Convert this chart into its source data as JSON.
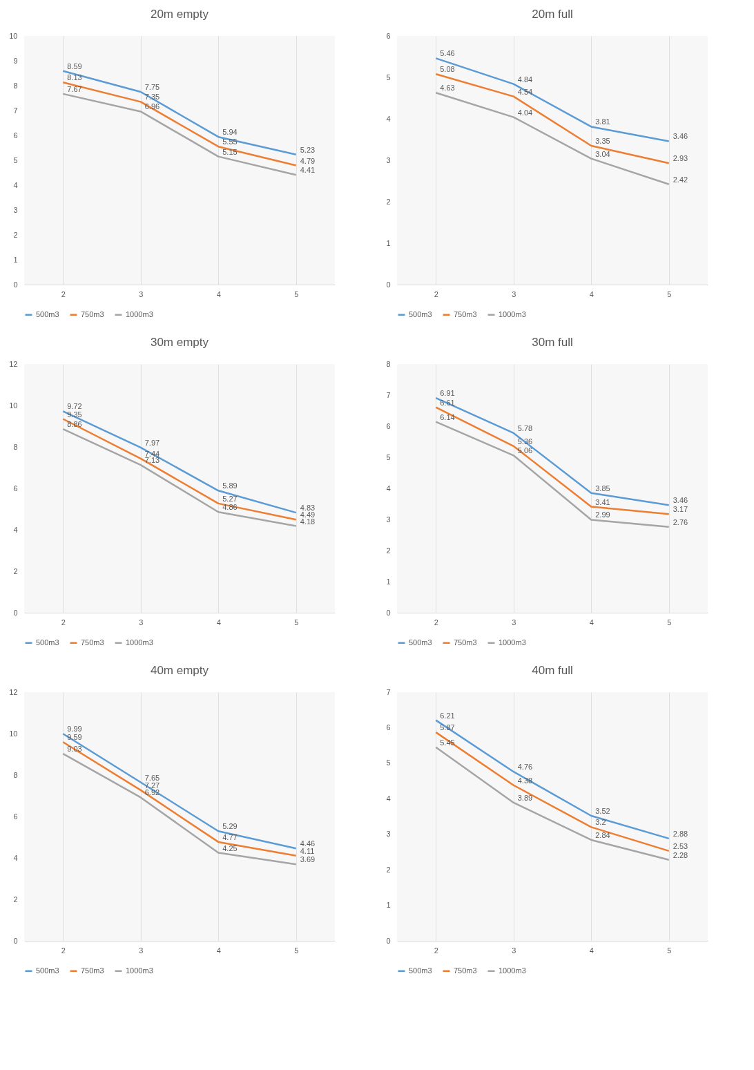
{
  "chart_data": [
    {
      "type": "line",
      "title": "20m empty",
      "categories": [
        "2",
        "3",
        "4",
        "5"
      ],
      "ylim": [
        0,
        10
      ],
      "yticks": [
        0,
        1,
        2,
        3,
        4,
        5,
        6,
        7,
        8,
        9,
        10
      ],
      "grid": "x",
      "legend": "bottom",
      "data_labels": true,
      "marker": "none",
      "line_style": "solid",
      "series": [
        {
          "name": "500m3",
          "color": "#5b9bd5",
          "values": [
            8.59,
            7.75,
            5.94,
            5.23
          ]
        },
        {
          "name": "750m3",
          "color": "#ed7d31",
          "values": [
            8.13,
            7.35,
            5.55,
            4.79
          ]
        },
        {
          "name": "1000m3",
          "color": "#a5a5a5",
          "values": [
            7.67,
            6.96,
            5.15,
            4.41
          ]
        }
      ]
    },
    {
      "type": "line",
      "title": "20m full",
      "categories": [
        "2",
        "3",
        "4",
        "5"
      ],
      "ylim": [
        0,
        6
      ],
      "yticks": [
        0,
        1,
        2,
        3,
        4,
        5,
        6
      ],
      "grid": "x",
      "legend": "bottom",
      "data_labels": true,
      "marker": "none",
      "line_style": "solid",
      "series": [
        {
          "name": "500m3",
          "color": "#5b9bd5",
          "values": [
            5.46,
            4.84,
            3.81,
            3.46
          ]
        },
        {
          "name": "750m3",
          "color": "#ed7d31",
          "values": [
            5.08,
            4.54,
            3.35,
            2.93
          ]
        },
        {
          "name": "1000m3",
          "color": "#a5a5a5",
          "values": [
            4.63,
            4.04,
            3.04,
            2.42
          ]
        }
      ]
    },
    {
      "type": "line",
      "title": "30m empty",
      "categories": [
        "2",
        "3",
        "4",
        "5"
      ],
      "ylim": [
        0,
        12
      ],
      "yticks": [
        0,
        2,
        4,
        6,
        8,
        10,
        12
      ],
      "grid": "x",
      "legend": "bottom",
      "data_labels": true,
      "marker": "none",
      "line_style": "solid",
      "series": [
        {
          "name": "500m3",
          "color": "#5b9bd5",
          "values": [
            9.72,
            7.97,
            5.89,
            4.83
          ]
        },
        {
          "name": "750m3",
          "color": "#ed7d31",
          "values": [
            9.35,
            7.44,
            5.27,
            4.49
          ]
        },
        {
          "name": "1000m3",
          "color": "#a5a5a5",
          "values": [
            8.86,
            7.13,
            4.86,
            4.18
          ]
        }
      ]
    },
    {
      "type": "line",
      "title": "30m full",
      "categories": [
        "2",
        "3",
        "4",
        "5"
      ],
      "ylim": [
        0,
        8
      ],
      "yticks": [
        0,
        1,
        2,
        3,
        4,
        5,
        6,
        7,
        8
      ],
      "grid": "x",
      "legend": "bottom",
      "data_labels": true,
      "marker": "none",
      "line_style": "solid",
      "series": [
        {
          "name": "500m3",
          "color": "#5b9bd5",
          "values": [
            6.91,
            5.78,
            3.85,
            3.46
          ]
        },
        {
          "name": "750m3",
          "color": "#ed7d31",
          "values": [
            6.61,
            5.36,
            3.41,
            3.17
          ]
        },
        {
          "name": "1000m3",
          "color": "#a5a5a5",
          "values": [
            6.14,
            5.06,
            2.99,
            2.76
          ]
        }
      ]
    },
    {
      "type": "line",
      "title": "40m empty",
      "categories": [
        "2",
        "3",
        "4",
        "5"
      ],
      "ylim": [
        0,
        12
      ],
      "yticks": [
        0,
        2,
        4,
        6,
        8,
        10,
        12
      ],
      "grid": "x",
      "legend": "bottom",
      "data_labels": true,
      "marker": "none",
      "line_style": "solid",
      "series": [
        {
          "name": "500m3",
          "color": "#5b9bd5",
          "values": [
            9.99,
            7.65,
            5.29,
            4.46
          ]
        },
        {
          "name": "750m3",
          "color": "#ed7d31",
          "values": [
            9.59,
            7.27,
            4.77,
            4.11
          ]
        },
        {
          "name": "1000m3",
          "color": "#a5a5a5",
          "values": [
            9.03,
            6.92,
            4.25,
            3.69
          ]
        }
      ]
    },
    {
      "type": "line",
      "title": "40m full",
      "categories": [
        "2",
        "3",
        "4",
        "5"
      ],
      "ylim": [
        0,
        7
      ],
      "yticks": [
        0,
        1,
        2,
        3,
        4,
        5,
        6,
        7
      ],
      "grid": "x",
      "legend": "bottom",
      "data_labels": true,
      "marker": "none",
      "line_style": "solid",
      "series": [
        {
          "name": "500m3",
          "color": "#5b9bd5",
          "values": [
            6.21,
            4.76,
            3.52,
            2.88
          ]
        },
        {
          "name": "750m3",
          "color": "#ed7d31",
          "values": [
            5.87,
            4.38,
            3.2,
            2.53
          ]
        },
        {
          "name": "1000m3",
          "color": "#a5a5a5",
          "values": [
            5.45,
            3.89,
            2.84,
            2.28
          ]
        }
      ]
    }
  ]
}
